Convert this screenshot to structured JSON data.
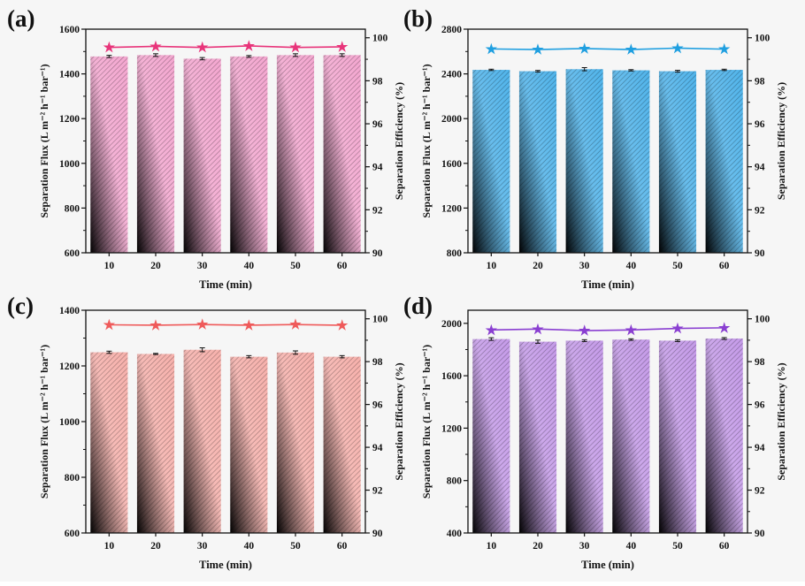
{
  "chart_data": [
    {
      "panel": "(a)",
      "type": "bar",
      "categories": [
        "10",
        "20",
        "30",
        "40",
        "50",
        "60"
      ],
      "xlabel": "Time (min)",
      "ylabel": "Separation Flux (L m⁻² h⁻¹ bar⁻¹)",
      "y2label": "Separation Efficiency (%)",
      "ylim": [
        600,
        1600
      ],
      "yticks": [
        600,
        800,
        1000,
        1200,
        1400,
        1600
      ],
      "y2lim": [
        90,
        100.4
      ],
      "y2ticks": [
        90,
        92,
        94,
        96,
        98,
        100
      ],
      "color": "#f3a6cf",
      "line_color": "#e8347a",
      "series": [
        {
          "name": "Separation Flux",
          "values": [
            1478,
            1484,
            1468,
            1478,
            1484,
            1484
          ],
          "errors": [
            5,
            6,
            5,
            4,
            6,
            6
          ]
        },
        {
          "name": "Separation Efficiency",
          "values": [
            99.55,
            99.6,
            99.55,
            99.62,
            99.55,
            99.58
          ]
        }
      ]
    },
    {
      "panel": "(b)",
      "type": "bar",
      "categories": [
        "10",
        "20",
        "30",
        "40",
        "50",
        "60"
      ],
      "xlabel": "Time (min)",
      "ylabel": "Separation Flux (L m⁻² h⁻¹ bar⁻¹)",
      "y2label": "Separation Efficiency (%)",
      "ylim": [
        800,
        2800
      ],
      "yticks": [
        800,
        1200,
        1600,
        2000,
        2400,
        2800
      ],
      "y2lim": [
        90,
        100.4
      ],
      "y2ticks": [
        90,
        92,
        94,
        96,
        98,
        100
      ],
      "color": "#4fb3ea",
      "line_color": "#1f9fe0",
      "series": [
        {
          "name": "Separation Flux",
          "values": [
            2436,
            2424,
            2442,
            2432,
            2424,
            2436
          ],
          "errors": [
            6,
            7,
            14,
            6,
            8,
            6
          ]
        },
        {
          "name": "Separation Efficiency",
          "values": [
            99.48,
            99.45,
            99.5,
            99.45,
            99.52,
            99.47
          ]
        }
      ]
    },
    {
      "panel": "(c)",
      "type": "bar",
      "categories": [
        "10",
        "20",
        "30",
        "40",
        "50",
        "60"
      ],
      "xlabel": "Time (min)",
      "ylabel": "Separation Flux (L m⁻² h⁻¹ bar⁻¹)",
      "y2label": "Separation Efficiency (%)",
      "ylim": [
        600,
        1400
      ],
      "yticks": [
        600,
        800,
        1000,
        1200,
        1400
      ],
      "y2lim": [
        90,
        100.4
      ],
      "y2ticks": [
        90,
        92,
        94,
        96,
        98,
        100
      ],
      "color": "#f6b0ab",
      "line_color": "#ef5a5a",
      "series": [
        {
          "name": "Separation Flux",
          "values": [
            1249,
            1243,
            1258,
            1233,
            1248,
            1233
          ],
          "errors": [
            4,
            2,
            7,
            4,
            6,
            4
          ]
        },
        {
          "name": "Separation Efficiency",
          "values": [
            99.72,
            99.7,
            99.73,
            99.7,
            99.73,
            99.7
          ]
        }
      ]
    },
    {
      "panel": "(d)",
      "type": "bar",
      "categories": [
        "10",
        "20",
        "30",
        "40",
        "50",
        "60"
      ],
      "xlabel": "Time (min)",
      "ylabel": "Separation Flux (L m⁻² h⁻¹ bar⁻¹)",
      "y2label": "Separation Efficiency (%)",
      "ylim": [
        400,
        2100
      ],
      "yticks": [
        400,
        800,
        1200,
        1600,
        2000
      ],
      "y2lim": [
        90,
        100.4
      ],
      "y2ticks": [
        90,
        92,
        94,
        96,
        98,
        100
      ],
      "color": "#c49ae8",
      "line_color": "#8a3fd1",
      "series": [
        {
          "name": "Separation Flux",
          "values": [
            1880,
            1860,
            1868,
            1876,
            1868,
            1884
          ],
          "errors": [
            10,
            12,
            7,
            6,
            7,
            7
          ]
        },
        {
          "name": "Separation Efficiency",
          "values": [
            99.48,
            99.52,
            99.45,
            99.48,
            99.55,
            99.58
          ]
        }
      ]
    }
  ]
}
